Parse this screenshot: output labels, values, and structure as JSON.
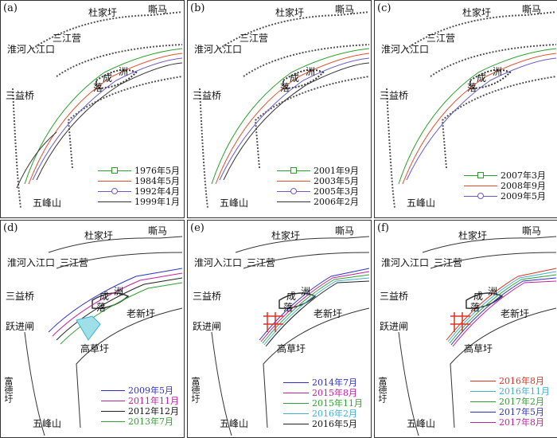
{
  "panels": [
    {
      "label": "(a)",
      "places": [
        "杜家圩",
        "嘶马",
        "三江营",
        "淮河入江口",
        "三益桥",
        "成",
        "洲",
        "落",
        "五峰山"
      ],
      "legend": [
        {
          "text": "1976年5月",
          "color": "#2aa02a",
          "marker": "square"
        },
        {
          "text": "1984年5月",
          "color": "#e05030",
          "marker": "none"
        },
        {
          "text": "1992年4月",
          "color": "#6a5acd",
          "marker": "circle"
        },
        {
          "text": "1999年1月",
          "color": "#333333",
          "marker": "none"
        }
      ]
    },
    {
      "label": "(b)",
      "places": [
        "杜家圩",
        "嘶马",
        "三江营",
        "淮河入江口",
        "三益桥",
        "成",
        "洲",
        "落",
        "五峰山"
      ],
      "legend": [
        {
          "text": "2001年9月",
          "color": "#2aa02a",
          "marker": "square"
        },
        {
          "text": "2003年5月",
          "color": "#e05030",
          "marker": "none"
        },
        {
          "text": "2005年3月",
          "color": "#6a5acd",
          "marker": "circle"
        },
        {
          "text": "2006年2月",
          "color": "#333333",
          "marker": "none"
        }
      ]
    },
    {
      "label": "(c)",
      "places": [
        "杜家圩",
        "嘶马",
        "三江营",
        "淮河入江口",
        "三益桥",
        "成",
        "洲",
        "落",
        "五峰山"
      ],
      "legend": [
        {
          "text": "2007年3月",
          "color": "#2aa02a",
          "marker": "square"
        },
        {
          "text": "2008年9月",
          "color": "#e05030",
          "marker": "none"
        },
        {
          "text": "2009年5月",
          "color": "#6a5acd",
          "marker": "circle"
        }
      ]
    },
    {
      "label": "(d)",
      "places": [
        "杜家圩",
        "嘶马",
        "淮河入江口",
        "三江营",
        "三益桥",
        "成",
        "洲",
        "落",
        "老新圩",
        "跃进闸",
        "高草圩",
        "富德圩",
        "五峰山"
      ],
      "legend": [
        {
          "text": "2009年5月",
          "color": "#3030c8",
          "marker": "none"
        },
        {
          "text": "2011年11月",
          "color": "#c020a0",
          "marker": "none"
        },
        {
          "text": "2012年12月",
          "color": "#222222",
          "marker": "none"
        },
        {
          "text": "2013年7月",
          "color": "#30a030",
          "marker": "none"
        }
      ]
    },
    {
      "label": "(e)",
      "places": [
        "杜家圩",
        "嘶马",
        "淮河入江口",
        "三江营",
        "三益桥",
        "成",
        "洲",
        "落",
        "老新圩",
        "跃进闸",
        "高草圩",
        "富德圩",
        "五峰山"
      ],
      "legend": [
        {
          "text": "2014年7月",
          "color": "#3030c8",
          "marker": "none"
        },
        {
          "text": "2015年8月",
          "color": "#c020a0",
          "marker": "none"
        },
        {
          "text": "2015年11月",
          "color": "#30a030",
          "marker": "none"
        },
        {
          "text": "2016年2月",
          "color": "#40b0d0",
          "marker": "none"
        },
        {
          "text": "2016年5月",
          "color": "#222222",
          "marker": "none"
        }
      ]
    },
    {
      "label": "(f)",
      "places": [
        "杜家圩",
        "嘶马",
        "淮河入江口",
        "三江营",
        "三益桥",
        "成",
        "洲",
        "落",
        "老新圩",
        "跃进闸",
        "高草圩",
        "富德圩",
        "五峰山"
      ],
      "legend": [
        {
          "text": "2016年8月",
          "color": "#e03020",
          "marker": "none"
        },
        {
          "text": "2016年11月",
          "color": "#40b0d0",
          "marker": "none"
        },
        {
          "text": "2017年2月",
          "color": "#30a030",
          "marker": "none"
        },
        {
          "text": "2017年5月",
          "color": "#3030c8",
          "marker": "none"
        },
        {
          "text": "2017年8月",
          "color": "#c020a0",
          "marker": "none"
        }
      ]
    }
  ]
}
